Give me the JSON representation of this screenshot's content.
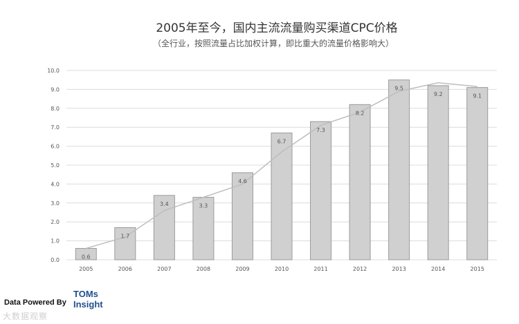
{
  "chart_data": {
    "type": "bar",
    "title": "2005年至今，国内主流流量购买渠道CPC价格",
    "subtitle": "（全行业，按照流量占比加权计算，即比重大的流量价格影响大）",
    "categories": [
      "2005",
      "2006",
      "2007",
      "2008",
      "2009",
      "2010",
      "2011",
      "2012",
      "2013",
      "2014",
      "2015"
    ],
    "values": [
      0.6,
      1.7,
      3.4,
      3.3,
      4.6,
      6.7,
      7.3,
      8.2,
      9.5,
      9.2,
      9.1
    ],
    "data_labels": [
      "0.6",
      "1.7",
      "3.4",
      "3.3",
      "4.6",
      "6.7",
      "7.3",
      "8.2",
      "9.5",
      "9.2",
      "9.1"
    ],
    "trend_line": [
      0.6,
      1.2,
      2.6,
      3.3,
      4.0,
      5.7,
      7.1,
      7.8,
      8.9,
      9.35,
      9.15
    ],
    "ylim": [
      0,
      10
    ],
    "yticks": [
      "0.0",
      "1.0",
      "2.0",
      "3.0",
      "4.0",
      "5.0",
      "6.0",
      "7.0",
      "8.0",
      "9.0",
      "10.0"
    ],
    "grid": true,
    "colors": {
      "bar_fill": "#d0d0d0",
      "bar_stroke": "#9a9a9a",
      "line": "#bdbdbd",
      "grid": "#dcdcdc"
    }
  },
  "footer": {
    "data_powered_by": "Data Powered By",
    "brand_line1": "TOMs",
    "brand_line2": "Insight"
  },
  "watermark": "大数据观察"
}
